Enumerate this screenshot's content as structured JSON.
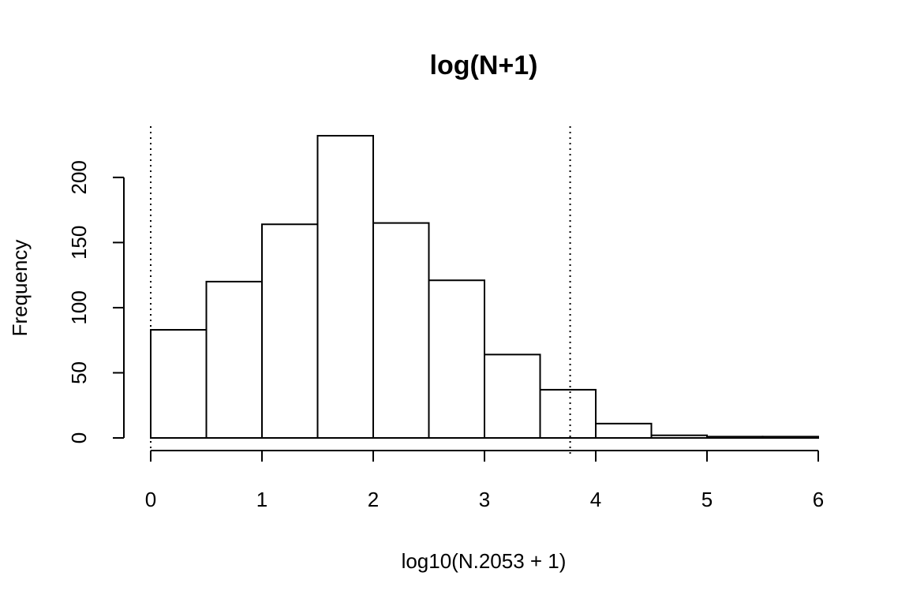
{
  "chart_data": {
    "type": "bar",
    "title": "log(N+1)",
    "xlabel": "log10(N.2053 + 1)",
    "ylabel": "Frequency",
    "bin_edges": [
      0,
      0.5,
      1,
      1.5,
      2,
      2.5,
      3,
      3.5,
      4,
      4.5,
      5,
      5.5,
      6
    ],
    "values": [
      83,
      120,
      164,
      232,
      165,
      121,
      64,
      37,
      11,
      2,
      1,
      1
    ],
    "xlim": [
      0,
      6
    ],
    "ylim": [
      0,
      232
    ],
    "x_ticks": [
      0,
      1,
      2,
      3,
      4,
      5,
      6
    ],
    "y_ticks": [
      0,
      50,
      100,
      150,
      200
    ],
    "vlines": [
      0,
      3.77
    ],
    "vline_style": "dotted",
    "bar_fill": "#ffffff",
    "bar_stroke": "#000000",
    "grid": false
  }
}
